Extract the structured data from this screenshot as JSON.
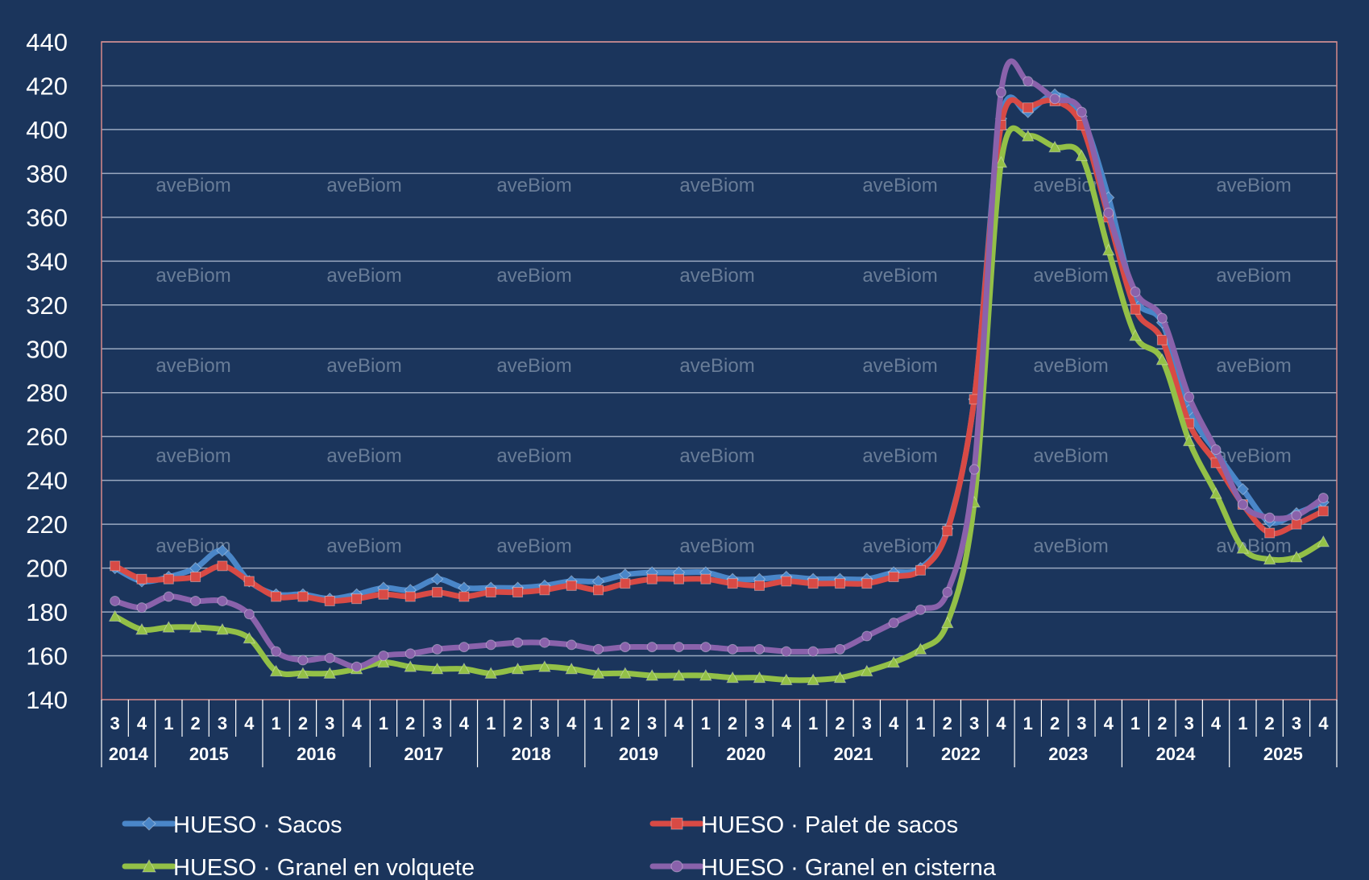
{
  "colors": {
    "background": "#1b355c",
    "frame": "#d88a8a",
    "grid": "#9aa9c0"
  },
  "watermark": "aveBiom",
  "chart_data": {
    "type": "line",
    "ylim": [
      140,
      440
    ],
    "yticks": [
      140,
      160,
      180,
      200,
      220,
      240,
      260,
      280,
      300,
      320,
      340,
      360,
      380,
      400,
      420,
      440
    ],
    "grid": true,
    "legend_position": "bottom",
    "quarters": [
      "3",
      "4",
      "1",
      "2",
      "3",
      "4",
      "1",
      "2",
      "3",
      "4",
      "1",
      "2",
      "3",
      "4",
      "1",
      "2",
      "3",
      "4",
      "1",
      "2",
      "3",
      "4",
      "1",
      "2",
      "3",
      "4",
      "1",
      "2",
      "3",
      "4",
      "1",
      "2",
      "3",
      "4",
      "1",
      "2",
      "3",
      "4",
      "1",
      "2",
      "3",
      "4",
      "1",
      "2",
      "3",
      "4"
    ],
    "years": [
      {
        "label": "2014",
        "count": 2
      },
      {
        "label": "2015",
        "count": 4
      },
      {
        "label": "2016",
        "count": 4
      },
      {
        "label": "2017",
        "count": 4
      },
      {
        "label": "2018",
        "count": 4
      },
      {
        "label": "2019",
        "count": 4
      },
      {
        "label": "2020",
        "count": 4
      },
      {
        "label": "2021",
        "count": 4
      },
      {
        "label": "2022",
        "count": 4
      },
      {
        "label": "2023",
        "count": 4
      },
      {
        "label": "2024",
        "count": 4
      },
      {
        "label": "2025",
        "count": 4
      }
    ],
    "series": [
      {
        "name": "HUESO · Sacos",
        "color": "#4a86c8",
        "marker": "diamond",
        "values": [
          200,
          194,
          196,
          200,
          208,
          194,
          188,
          188,
          186,
          188,
          191,
          190,
          195,
          191,
          191,
          191,
          192,
          194,
          194,
          197,
          198,
          198,
          198,
          195,
          195,
          196,
          195,
          195,
          195,
          198,
          200,
          218,
          277,
          405,
          408,
          416,
          406,
          369,
          323,
          312,
          272,
          253,
          236,
          221,
          225,
          230
        ]
      },
      {
        "name": "HUESO · Palet de sacos",
        "color": "#d84a45",
        "marker": "square",
        "values": [
          201,
          195,
          195,
          196,
          201,
          194,
          187,
          187,
          185,
          186,
          188,
          187,
          189,
          187,
          189,
          189,
          190,
          192,
          190,
          193,
          195,
          195,
          195,
          193,
          192,
          194,
          193,
          193,
          193,
          196,
          199,
          217,
          277,
          402,
          410,
          413,
          402,
          360,
          318,
          304,
          266,
          248,
          229,
          216,
          220,
          226
        ]
      },
      {
        "name": "HUESO · Granel en volquete",
        "color": "#93c047",
        "marker": "triangle",
        "values": [
          178,
          172,
          173,
          173,
          172,
          168,
          153,
          152,
          152,
          154,
          157,
          155,
          154,
          154,
          152,
          154,
          155,
          154,
          152,
          152,
          151,
          151,
          151,
          150,
          150,
          149,
          149,
          150,
          153,
          157,
          163,
          175,
          230,
          385,
          397,
          392,
          388,
          345,
          306,
          295,
          258,
          234,
          209,
          204,
          205,
          212
        ]
      },
      {
        "name": "HUESO · Granel en cisterna",
        "color": "#8a62ab",
        "marker": "circle",
        "values": [
          185,
          182,
          187,
          185,
          185,
          179,
          162,
          158,
          159,
          155,
          160,
          161,
          163,
          164,
          165,
          166,
          166,
          165,
          163,
          164,
          164,
          164,
          164,
          163,
          163,
          162,
          162,
          163,
          169,
          175,
          181,
          189,
          245,
          417,
          422,
          414,
          408,
          362,
          326,
          314,
          278,
          254,
          229,
          223,
          224,
          232
        ]
      }
    ]
  }
}
